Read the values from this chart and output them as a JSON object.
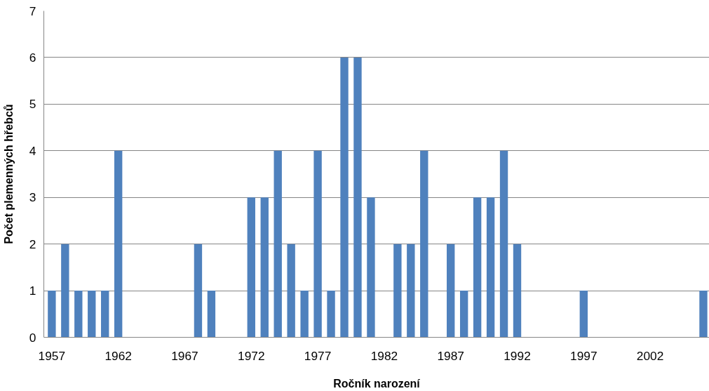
{
  "chart_data": {
    "type": "bar",
    "xlabel": "Ročník narození",
    "ylabel": "Počet plemenných hřebců",
    "categories": [
      "1957",
      null,
      null,
      null,
      null,
      "1962",
      null,
      null,
      null,
      null,
      "1967",
      null,
      null,
      null,
      null,
      "1972",
      null,
      null,
      null,
      null,
      "1977",
      null,
      null,
      null,
      null,
      "1982",
      null,
      null,
      null,
      null,
      "1987",
      null,
      null,
      null,
      null,
      "1992",
      null,
      null,
      null,
      null,
      "1997",
      null,
      null,
      null,
      null,
      "2002",
      null,
      null,
      null,
      null
    ],
    "values": [
      1,
      2,
      1,
      1,
      1,
      4,
      0,
      0,
      0,
      0,
      0,
      2,
      1,
      0,
      0,
      3,
      3,
      4,
      2,
      1,
      4,
      1,
      6,
      6,
      3,
      0,
      2,
      2,
      4,
      0,
      2,
      1,
      3,
      3,
      4,
      2,
      0,
      0,
      0,
      0,
      1,
      0,
      0,
      0,
      0,
      0,
      0,
      0,
      0,
      1
    ],
    "color": "#4f81bd",
    "ylim": [
      0,
      7
    ],
    "yticks": [
      0,
      1,
      2,
      3,
      4,
      5,
      6,
      7
    ],
    "grid": "y"
  }
}
